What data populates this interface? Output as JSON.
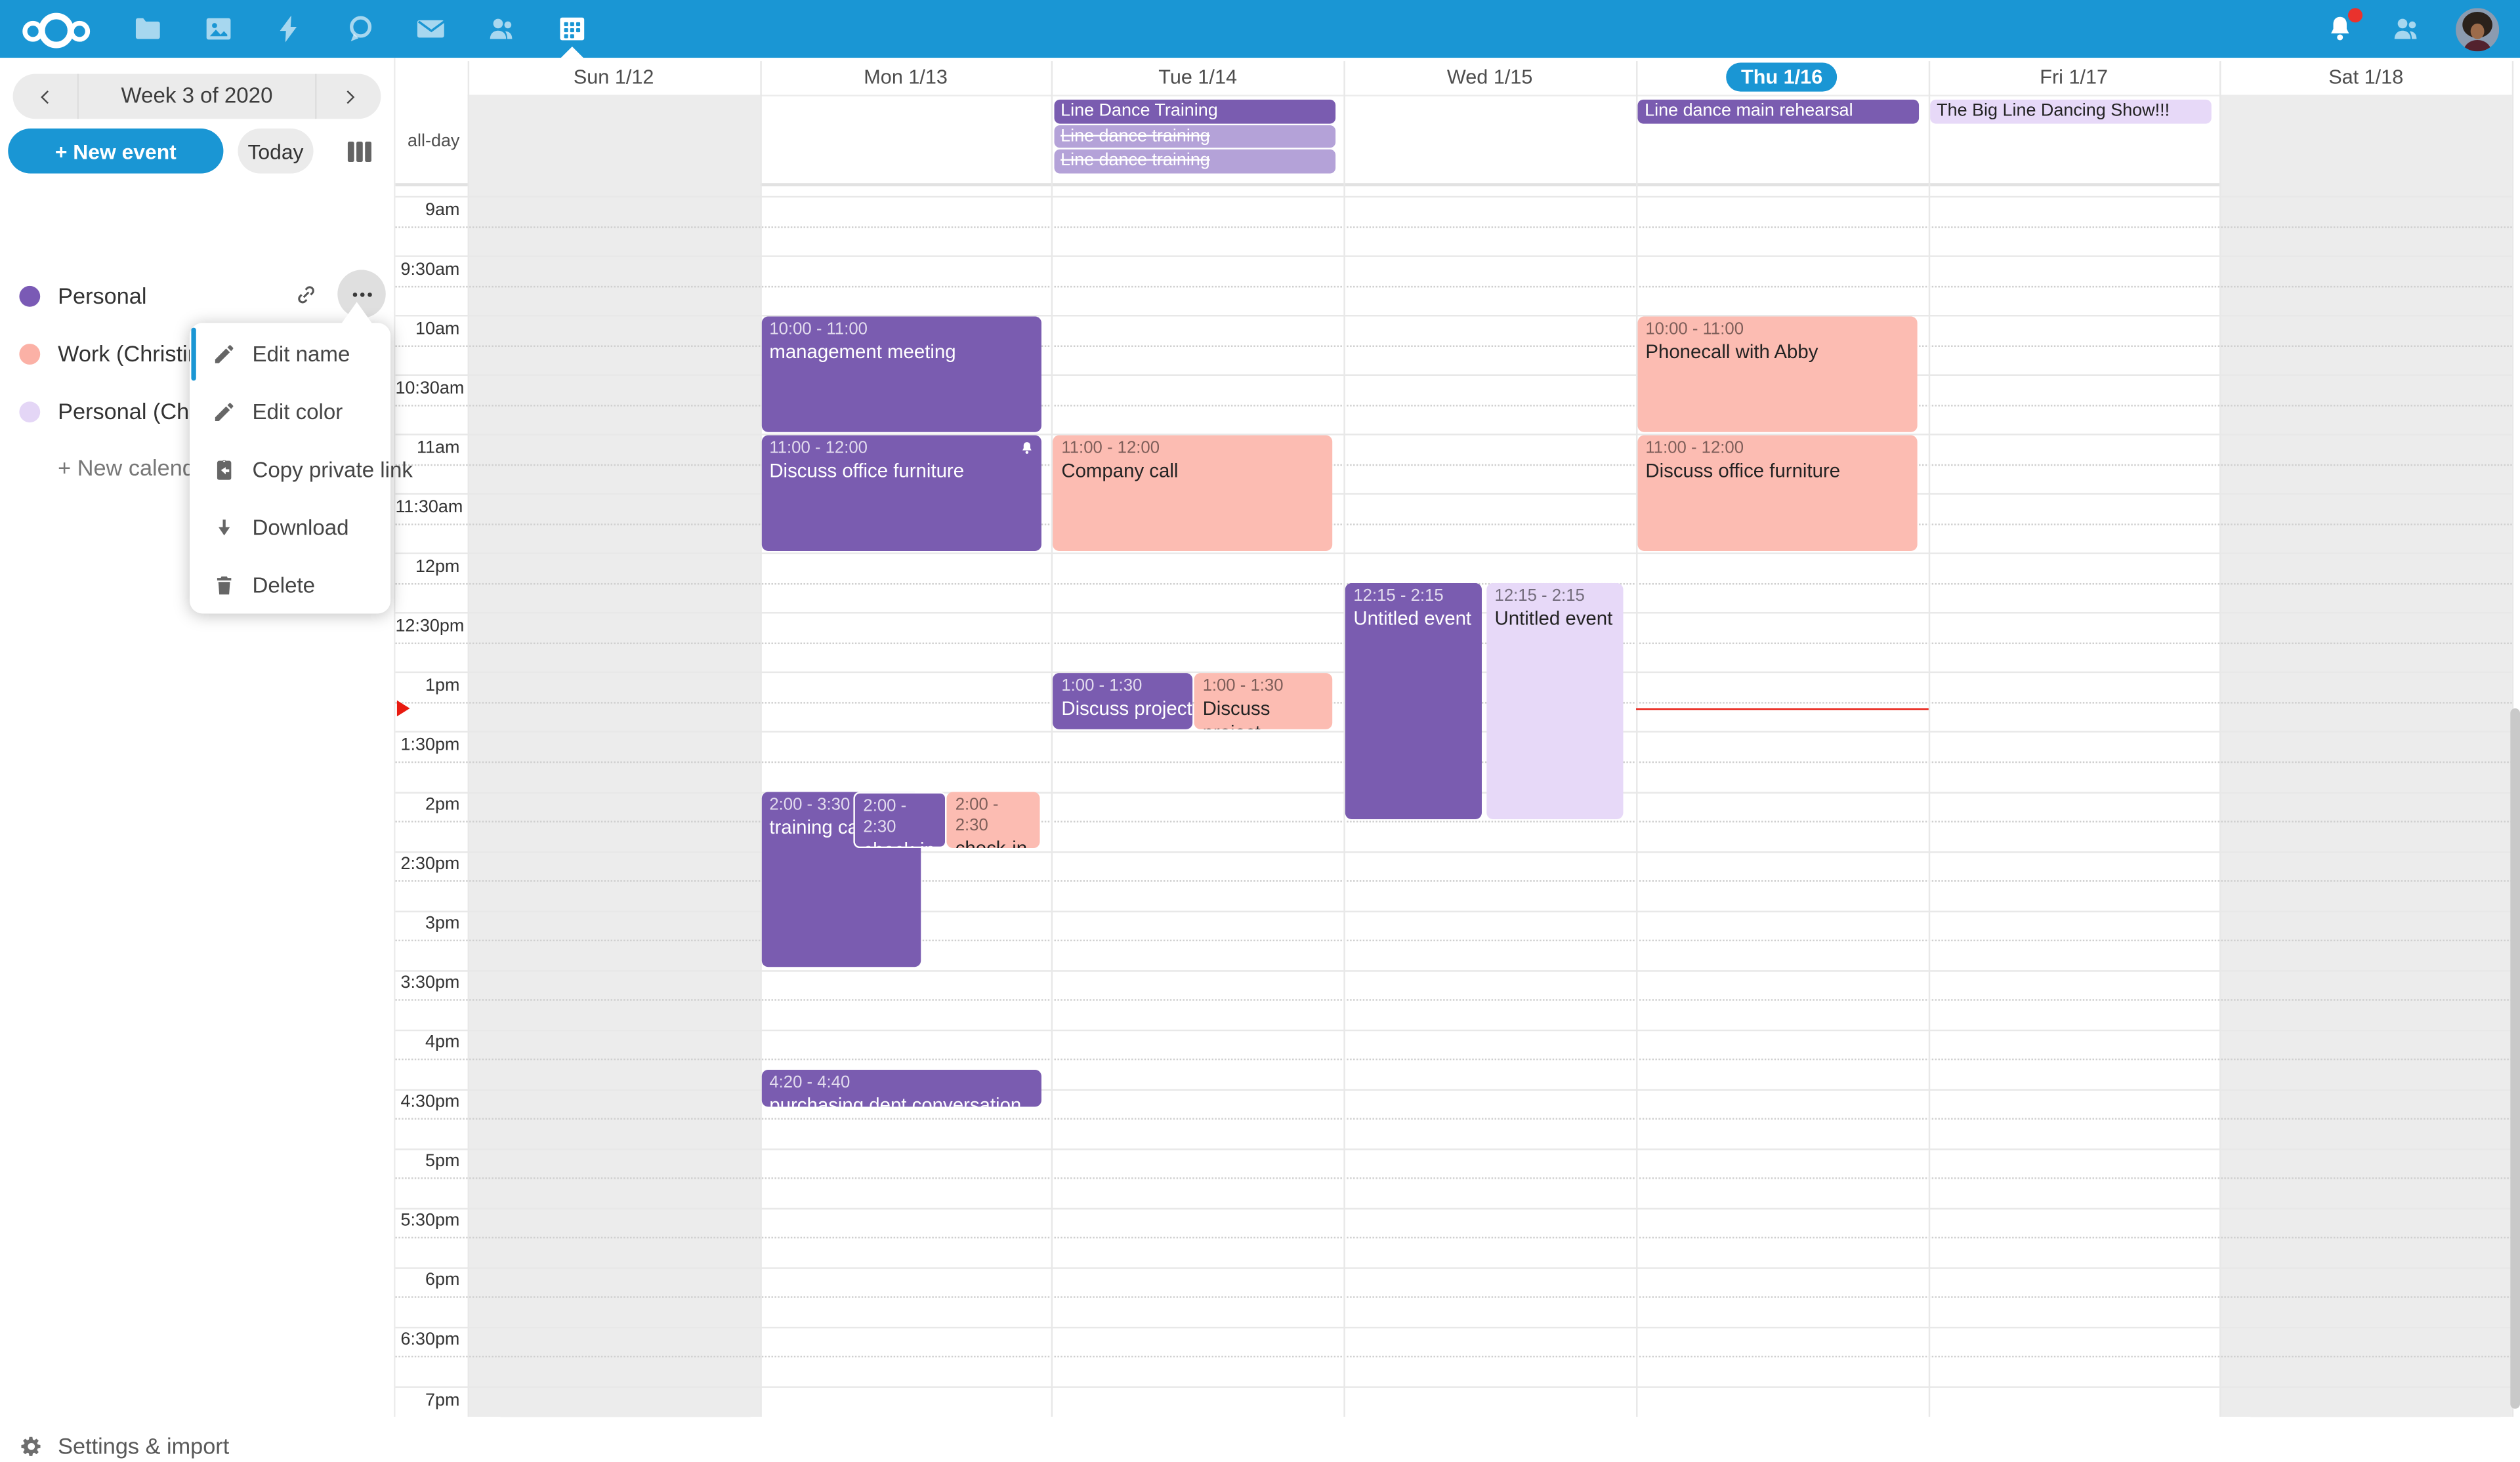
{
  "colors": {
    "primary": "#1a96d4",
    "topbar_icon": "rgba(255,255,255,0.62)",
    "event_purple": "#7a5cb0",
    "event_purple_light": "#b4a2d8",
    "event_pink": "#fcbcb2",
    "event_lavender": "#e7d9f8",
    "event_dark_text": "#232323",
    "now_red": "#e81a10",
    "dot_personal": "#7a5ab5",
    "dot_work": "#fbb1a6",
    "dot_personal_christine": "#e4d6f6",
    "weekend_bg": "#ececec"
  },
  "topbar": {
    "apps": [
      {
        "icon": "files-icon"
      },
      {
        "icon": "photos-icon"
      },
      {
        "icon": "activity-icon"
      },
      {
        "icon": "talk-icon"
      },
      {
        "icon": "mail-icon"
      },
      {
        "icon": "contacts-icon"
      },
      {
        "icon": "calendar-icon",
        "active": true
      }
    ],
    "notifications": {
      "icon": "bell-icon",
      "has_unread": true
    },
    "contacts_menu": {
      "icon": "contacts-menu-icon"
    },
    "avatar": {
      "icon": "user-avatar"
    }
  },
  "sidebar": {
    "week_label": "Week 3 of 2020",
    "new_event_label": "+ New event",
    "today_label": "Today",
    "new_calendar_label": "+ New calendar",
    "settings_label": "Settings & import",
    "calendars": [
      {
        "name": "Personal",
        "color_key": "dot_personal",
        "has_actions": true
      },
      {
        "name": "Work (Christine S",
        "color_key": "dot_work"
      },
      {
        "name": "Personal (Christi",
        "color_key": "dot_personal_christine"
      }
    ],
    "menu": {
      "items": [
        {
          "label": "Edit name",
          "icon": "pencil-icon"
        },
        {
          "label": "Edit color",
          "icon": "pencil-icon"
        },
        {
          "label": "Copy private link",
          "icon": "clipboard-arrow-icon"
        },
        {
          "label": "Download",
          "icon": "download-icon"
        },
        {
          "label": "Delete",
          "icon": "trash-icon"
        }
      ]
    }
  },
  "calendar": {
    "allday_label": "all-day",
    "days": [
      {
        "label": "Sun 1/12",
        "weekend": true
      },
      {
        "label": "Mon 1/13"
      },
      {
        "label": "Tue 1/14"
      },
      {
        "label": "Wed 1/15"
      },
      {
        "label": "Thu 1/16",
        "today": true
      },
      {
        "label": "Fri 1/17"
      },
      {
        "label": "Sat 1/18",
        "weekend": true
      }
    ],
    "time_labels": [
      "9am",
      "9:30am",
      "10am",
      "10:30am",
      "11am",
      "11:30am",
      "12pm",
      "12:30pm",
      "1pm",
      "1:30pm",
      "2pm",
      "2:30pm",
      "3pm",
      "3:30pm",
      "4pm",
      "4:30pm",
      "5pm",
      "5:30pm",
      "6pm",
      "6:30pm",
      "7pm"
    ],
    "allday_events": [
      {
        "day": 2,
        "row": 0,
        "title": "Line Dance Training",
        "style": "purple"
      },
      {
        "day": 2,
        "row": 1,
        "title": "Line dance training",
        "style": "light-purple",
        "strike": true
      },
      {
        "day": 2,
        "row": 2,
        "title": "Line dance training",
        "style": "light-purple",
        "strike": true
      },
      {
        "day": 4,
        "row": 0,
        "title": "Line dance main rehearsal",
        "style": "purple"
      },
      {
        "day": 5,
        "row": 0,
        "title": "The Big Line Dancing Show!!!",
        "style": "lavender"
      }
    ],
    "events": [
      {
        "day": 1,
        "start": 10,
        "end": 11,
        "time": "10:00 - 11:00",
        "title": "management meeting",
        "style": "purple"
      },
      {
        "day": 1,
        "start": 11,
        "end": 12,
        "time": "11:00 - 12:00",
        "title": "Discuss office furniture",
        "style": "purple",
        "bell": true
      },
      {
        "day": 1,
        "start": 14,
        "end": 15.5,
        "time": "2:00 - 3:30",
        "title": "training call",
        "style": "purple",
        "x": 0,
        "w": 0.57
      },
      {
        "day": 1,
        "start": 14,
        "end": 14.5,
        "time": "2:00 - 2:30",
        "title": "check-in",
        "style": "purple",
        "x": 0.33,
        "w": 0.33,
        "border": true
      },
      {
        "day": 1,
        "start": 14,
        "end": 14.5,
        "time": "2:00 - 2:30",
        "title": "check-in",
        "style": "pink",
        "x": 0.665,
        "w": 0.33
      },
      {
        "day": 1,
        "start": 16.333,
        "end": 16.667,
        "time": "4:20 - 4:40",
        "title": "purchasing dept conversation",
        "style": "purple",
        "nowrap": true
      },
      {
        "day": 2,
        "start": 11,
        "end": 12,
        "time": "11:00 - 12:00",
        "title": "Company call",
        "style": "pink"
      },
      {
        "day": 2,
        "start": 13,
        "end": 13.5,
        "time": "1:00 - 1:30",
        "title": "Discuss project announcement",
        "style": "purple",
        "x": 0,
        "w": 0.5,
        "nowrap": true
      },
      {
        "day": 2,
        "start": 13,
        "end": 13.5,
        "time": "1:00 - 1:30",
        "title": "Discuss project announcement",
        "style": "pink",
        "x": 0.505,
        "w": 0.495
      },
      {
        "day": 3,
        "start": 12.25,
        "end": 14.25,
        "time": "12:15 - 2:15",
        "title": "Untitled event",
        "style": "purple",
        "x": 0,
        "w": 0.49
      },
      {
        "day": 3,
        "start": 12.25,
        "end": 14.25,
        "time": "12:15 - 2:15",
        "title": "Untitled event",
        "style": "lavender",
        "x": 0.505,
        "w": 0.49
      },
      {
        "day": 4,
        "start": 10,
        "end": 11,
        "time": "10:00 - 11:00",
        "title": "Phonecall with Abby",
        "style": "pink"
      },
      {
        "day": 4,
        "start": 11,
        "end": 12,
        "time": "11:00 - 12:00",
        "title": "Discuss office furniture",
        "style": "pink"
      }
    ],
    "now_indicator": {
      "day_index": 4,
      "hour": 13.3
    }
  }
}
